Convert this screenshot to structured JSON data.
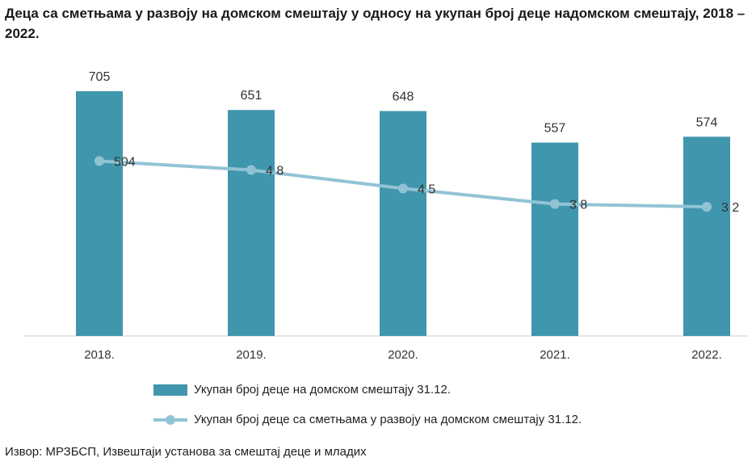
{
  "title": "Деца са сметњама у развоју на домском смештају у односу на укупан број деце надомском смештају, 2018 – 2022.",
  "source": "Извор: МРЗБСП, Извештаји установа за смештај деце и младих",
  "colors": {
    "bar": "#4096ad",
    "line": "#91c3d5",
    "axis": "#cccccc"
  },
  "chart_data": {
    "type": "bar",
    "categories": [
      "2018.",
      "2019.",
      "2020.",
      "2021.",
      "2022."
    ],
    "series": [
      {
        "name": "Укупан број деце на домском смештају 31.12.",
        "type": "bar",
        "values": [
          705,
          651,
          648,
          557,
          574
        ],
        "labels": [
          "705",
          "651",
          "648",
          "557",
          "574"
        ]
      },
      {
        "name": "Укупан број деце са сметњама у развоју на домском смештају 31.12.",
        "type": "line",
        "values": [
          504,
          478,
          425,
          380,
          372
        ],
        "labels": [
          "504",
          "4 8",
          "4 5",
          "3 8",
          "3 2"
        ]
      }
    ],
    "ylim": [
      0,
      750
    ],
    "xlabel": "",
    "ylabel": "",
    "legend": "bottom"
  }
}
